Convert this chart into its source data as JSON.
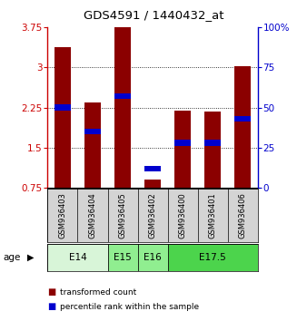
{
  "title": "GDS4591 / 1440432_at",
  "samples": [
    "GSM936403",
    "GSM936404",
    "GSM936405",
    "GSM936402",
    "GSM936400",
    "GSM936401",
    "GSM936406"
  ],
  "transformed_counts": [
    3.38,
    2.35,
    3.75,
    0.9,
    2.2,
    2.18,
    3.02
  ],
  "percentile_ranks": [
    50,
    35,
    57,
    12,
    28,
    28,
    43
  ],
  "ymin": 0.75,
  "ymax": 3.75,
  "yticks": [
    0.75,
    1.5,
    2.25,
    3.0,
    3.75
  ],
  "ytick_labels": [
    "0.75",
    "1.5",
    "2.25",
    "3",
    "3.75"
  ],
  "right_yticks": [
    0,
    25,
    50,
    75,
    100
  ],
  "right_ytick_labels": [
    "0",
    "25",
    "50",
    "75",
    "100%"
  ],
  "bar_color": "#8B0000",
  "percentile_color": "#0000CD",
  "age_label": "age",
  "legend_items": [
    {
      "color": "#8B0000",
      "label": "transformed count"
    },
    {
      "color": "#0000CD",
      "label": "percentile rank within the sample"
    }
  ],
  "bar_width": 0.55,
  "age_groups": [
    {
      "label": "E14",
      "start": 0,
      "end": 1,
      "color": "#d8f5d8"
    },
    {
      "label": "E15",
      "start": 2,
      "end": 2,
      "color": "#90ee90"
    },
    {
      "label": "E16",
      "start": 3,
      "end": 3,
      "color": "#90ee90"
    },
    {
      "label": "E17.5",
      "start": 4,
      "end": 6,
      "color": "#4cd44c"
    }
  ],
  "fig_width": 3.38,
  "fig_height": 3.54,
  "dpi": 100
}
